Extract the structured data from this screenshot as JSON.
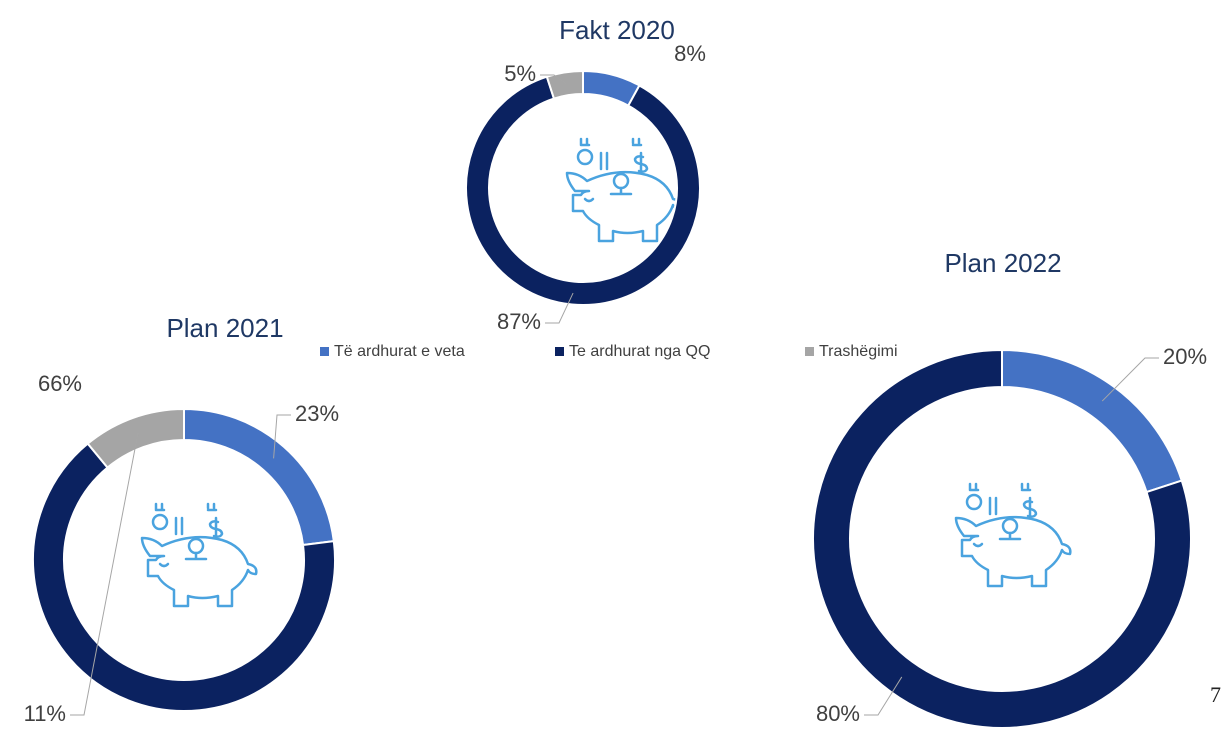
{
  "chart_data": [
    {
      "type": "doughnut",
      "title": "Fakt 2020",
      "categories": [
        "Të ardhurat e veta",
        "Te ardhurat nga QQ",
        "Trashëgimi"
      ],
      "values": [
        8,
        87,
        5
      ],
      "value_labels": [
        "8%",
        "87%",
        "5%"
      ],
      "colors": [
        "#4472c4",
        "#0b2260",
        "#a5a5a5"
      ],
      "legend": "bottom"
    },
    {
      "type": "doughnut",
      "title": "Plan 2021",
      "categories": [
        "Të ardhurat e veta",
        "Te ardhurat nga QQ",
        "Trashëgimi"
      ],
      "values": [
        23,
        66,
        11
      ],
      "value_labels": [
        "23%",
        "66%",
        "11%"
      ],
      "colors": [
        "#4472c4",
        "#0b2260",
        "#a5a5a5"
      ]
    },
    {
      "type": "doughnut",
      "title": "Plan 2022",
      "categories": [
        "Të ardhurat e veta",
        "Te ardhurat nga QQ"
      ],
      "values": [
        20,
        80
      ],
      "value_labels": [
        "20%",
        "80%"
      ],
      "colors": [
        "#4472c4",
        "#0b2260"
      ],
      "annotations": [
        "7"
      ]
    }
  ]
}
